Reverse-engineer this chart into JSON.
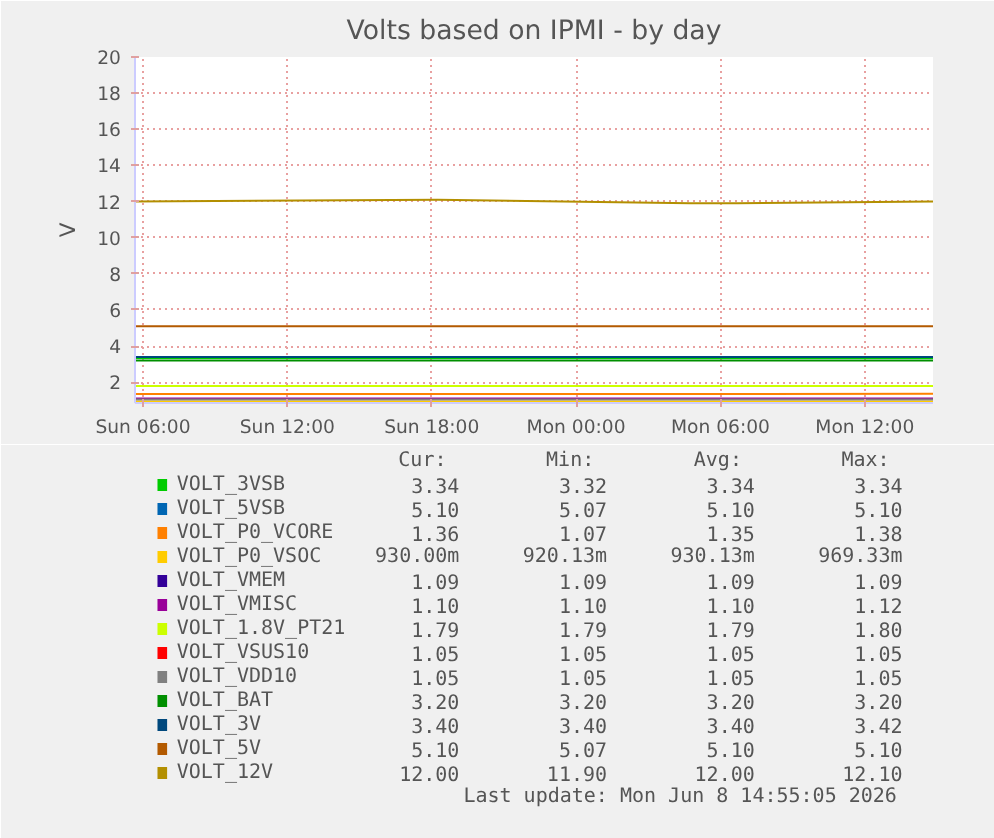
{
  "chart_data": {
    "type": "line",
    "title": "Volts based on IPMI - by day",
    "ylabel": "V",
    "xlim": [
      "2026-06-07T05:40",
      "2026-06-08T14:50"
    ],
    "xticks": [
      {
        "value": "2026-06-07T06:00",
        "label": "Sun 06:00"
      },
      {
        "value": "2026-06-07T12:00",
        "label": "Sun 12:00"
      },
      {
        "value": "2026-06-07T18:00",
        "label": "Sun 18:00"
      },
      {
        "value": "2026-06-08T00:00",
        "label": "Mon 00:00"
      },
      {
        "value": "2026-06-08T06:00",
        "label": "Mon 06:00"
      },
      {
        "value": "2026-06-08T12:00",
        "label": "Mon 12:00"
      }
    ],
    "ylim": [
      0.85,
      20
    ],
    "yticks": [
      2,
      4,
      6,
      8,
      10,
      12,
      14,
      16,
      18,
      20
    ],
    "grid": true,
    "legend": "bottom",
    "x": [
      "2026-06-07T05:40",
      "2026-06-07T18:15",
      "2026-06-08T04:45",
      "2026-06-08T06:42",
      "2026-06-08T14:50"
    ],
    "series": [
      {
        "name": "VOLT_3VSB",
        "color": "#00cc00",
        "values": [
          3.34,
          3.34,
          3.34,
          3.34,
          3.34
        ]
      },
      {
        "name": "VOLT_5VSB",
        "color": "#0066b3",
        "values": [
          null,
          null,
          null,
          null,
          null
        ]
      },
      {
        "name": "VOLT_P0_VCORE",
        "color": "#ff8000",
        "values": [
          1.35,
          1.35,
          1.35,
          1.35,
          1.36
        ]
      },
      {
        "name": "VOLT_P0_VSOC",
        "color": "#ffcc00",
        "values": [
          0.93,
          0.93,
          0.93,
          0.93,
          0.93
        ]
      },
      {
        "name": "VOLT_VMEM",
        "color": "#330099",
        "values": [
          null,
          null,
          null,
          null,
          null
        ]
      },
      {
        "name": "VOLT_VMISC",
        "color": "#990099",
        "values": [
          1.1,
          1.1,
          1.1,
          1.1,
          1.1
        ]
      },
      {
        "name": "VOLT_1.8V_PT21",
        "color": "#ccff00",
        "values": [
          1.79,
          1.79,
          1.79,
          1.79,
          1.79
        ]
      },
      {
        "name": "VOLT_VSUS10",
        "color": "#ff0000",
        "values": [
          null,
          null,
          null,
          null,
          null
        ]
      },
      {
        "name": "VOLT_VDD10",
        "color": "#808080",
        "values": [
          1.05,
          1.05,
          1.05,
          1.05,
          1.05
        ]
      },
      {
        "name": "VOLT_BAT",
        "color": "#008f00",
        "values": [
          3.2,
          3.2,
          3.2,
          3.2,
          3.2
        ]
      },
      {
        "name": "VOLT_3V",
        "color": "#00487d",
        "values": [
          3.4,
          3.4,
          3.4,
          3.4,
          3.4
        ]
      },
      {
        "name": "VOLT_5V",
        "color": "#b35a00",
        "values": [
          5.1,
          5.1,
          5.1,
          5.1,
          5.1
        ]
      },
      {
        "name": "VOLT_12V",
        "color": "#b38f00",
        "values": [
          12.0,
          12.1,
          11.9,
          11.9,
          12.0
        ]
      }
    ],
    "annotations": [
      "Cur:",
      "Min:",
      "Avg:",
      "Max:",
      "3.34",
      "3.32",
      "3.34",
      "3.34",
      "5.10",
      "5.07",
      "5.10",
      "5.10",
      "1.36",
      "1.07",
      "1.35",
      "1.38",
      "930.00m",
      "920.13m",
      "930.13m",
      "969.33m",
      "1.09",
      "1.09",
      "1.09",
      "1.09",
      "1.10",
      "1.10",
      "1.10",
      "1.12",
      "1.79",
      "1.79",
      "1.79",
      "1.80",
      "1.05",
      "1.05",
      "1.05",
      "1.05",
      "1.05",
      "1.05",
      "1.05",
      "1.05",
      "3.20",
      "3.20",
      "3.20",
      "3.20",
      "3.40",
      "3.40",
      "3.40",
      "3.42",
      "5.10",
      "5.07",
      "5.10",
      "5.10",
      "12.00",
      "11.90",
      "12.00",
      "12.10",
      "Last update: Mon Jun  8 14:55:05 2026"
    ]
  }
}
